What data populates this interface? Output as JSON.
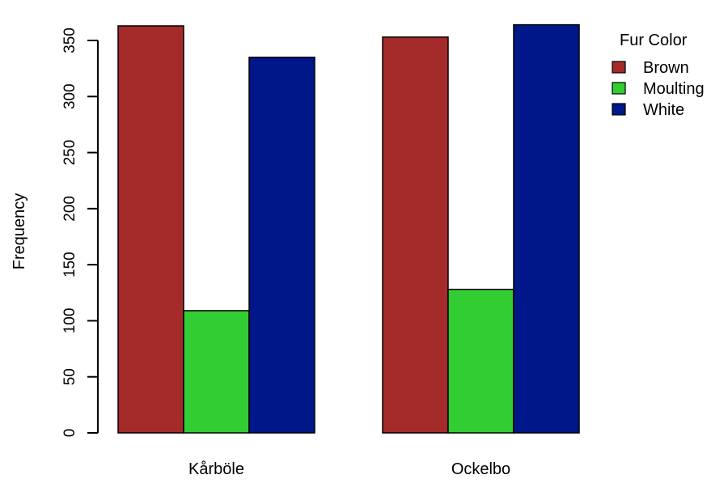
{
  "chart_data": {
    "type": "bar",
    "title": "",
    "xlabel": "",
    "ylabel": "Frequency",
    "categories": [
      "Kårböle",
      "Ockelbo"
    ],
    "series": [
      {
        "name": "Brown",
        "values": [
          363,
          353
        ],
        "color": "#A52A2A"
      },
      {
        "name": "Moulting",
        "values": [
          109,
          128
        ],
        "color": "#32CD32"
      },
      {
        "name": "White",
        "values": [
          335,
          364
        ],
        "color": "#00178A"
      }
    ],
    "ylim": [
      0,
      350
    ],
    "yticks": [
      0,
      50,
      100,
      150,
      200,
      250,
      300,
      350
    ],
    "grid": false,
    "legend": {
      "title": "Fur Color",
      "placement": "top-right"
    }
  }
}
